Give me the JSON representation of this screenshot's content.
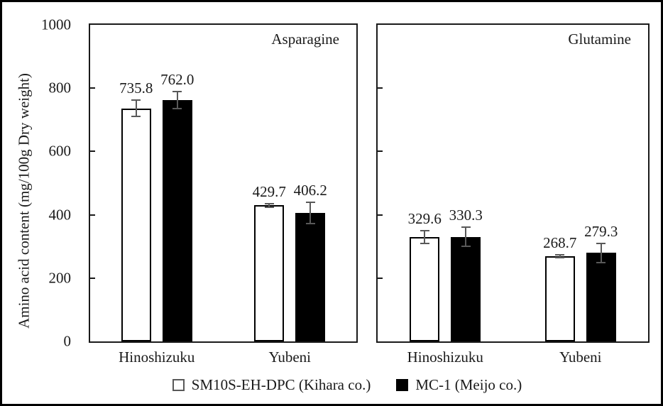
{
  "figure": {
    "ylabel": "Amino acid content (mg/100g Dry weight)",
    "yticks": [
      0,
      200,
      400,
      600,
      800,
      1000
    ],
    "ylim": [
      0,
      1000
    ],
    "categories": [
      "Hinoshizuku",
      "Yubeni"
    ],
    "legend": [
      {
        "label": "SM10S-EH-DPC (Kihara co.)",
        "fill": "#ffffff",
        "border": "#595959"
      },
      {
        "label": "MC-1 (Meijo co.)",
        "fill": "#000000",
        "border": "#000000"
      }
    ]
  },
  "chart_data": [
    {
      "type": "bar",
      "title": "Asparagine",
      "categories": [
        "Hinoshizuku",
        "Yubeni"
      ],
      "series": [
        {
          "name": "SM10S-EH-DPC (Kihara co.)",
          "values": [
            735.8,
            429.7
          ],
          "labels": [
            "735.8",
            "429.7"
          ],
          "errors": [
            26,
            6
          ],
          "fill": "#ffffff"
        },
        {
          "name": "MC-1 (Meijo co.)",
          "values": [
            762.0,
            406.2
          ],
          "labels": [
            "762.0",
            "406.2"
          ],
          "errors": [
            27,
            34
          ],
          "fill": "#000000"
        }
      ],
      "xlabel": "",
      "ylabel": "Amino acid content (mg/100g Dry weight)",
      "ylim": [
        0,
        1000
      ],
      "grid": false,
      "legend_position": "bottom"
    },
    {
      "type": "bar",
      "title": "Glutamine",
      "categories": [
        "Hinoshizuku",
        "Yubeni"
      ],
      "series": [
        {
          "name": "SM10S-EH-DPC (Kihara co.)",
          "values": [
            329.6,
            268.7
          ],
          "labels": [
            "329.6",
            "268.7"
          ],
          "errors": [
            20,
            4
          ],
          "fill": "#ffffff"
        },
        {
          "name": "MC-1 (Meijo co.)",
          "values": [
            330.3,
            279.3
          ],
          "labels": [
            "330.3",
            "279.3"
          ],
          "errors": [
            30,
            31
          ],
          "fill": "#000000"
        }
      ],
      "xlabel": "",
      "ylabel": "Amino acid content (mg/100g Dry weight)",
      "ylim": [
        0,
        1000
      ],
      "grid": false,
      "legend_position": "bottom"
    }
  ],
  "colors": {
    "bar_border": "#000000",
    "error_bar": "#595959",
    "axis": "#1a1a1a",
    "text": "#1a1a1a",
    "background": "#ffffff"
  }
}
